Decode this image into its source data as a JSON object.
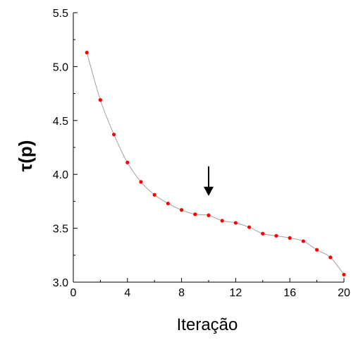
{
  "chart_data": {
    "type": "line",
    "title": "",
    "xlabel": "Iteração",
    "ylabel": "τ(p)",
    "xlim": [
      0,
      20
    ],
    "ylim": [
      3.0,
      5.5
    ],
    "xticks": [
      0,
      4,
      8,
      12,
      16,
      20
    ],
    "xtick_labels": [
      "0",
      "4",
      "8",
      "12",
      "16",
      "20"
    ],
    "yticks": [
      3.0,
      3.5,
      4.0,
      4.5,
      5.0,
      5.5
    ],
    "ytick_labels": [
      "3.0",
      "3.5",
      "4.0",
      "4.5",
      "5.0",
      "5.5"
    ],
    "grid": false,
    "legend": "none",
    "series": [
      {
        "x": [
          1,
          2,
          3,
          4,
          5,
          6,
          7,
          8,
          9,
          10,
          11,
          12,
          13,
          14,
          15,
          16,
          17,
          18,
          19,
          20
        ],
        "values": [
          5.13,
          4.69,
          4.37,
          4.11,
          3.93,
          3.81,
          3.73,
          3.67,
          3.63,
          3.62,
          3.57,
          3.55,
          3.51,
          3.45,
          3.43,
          3.41,
          3.38,
          3.3,
          3.23,
          3.07
        ],
        "line_color": "#a0a0a0",
        "marker_color": "#ff0000"
      }
    ],
    "annotations": [
      {
        "type": "arrow",
        "x": 10,
        "y": 3.8,
        "direction": "down"
      }
    ]
  }
}
